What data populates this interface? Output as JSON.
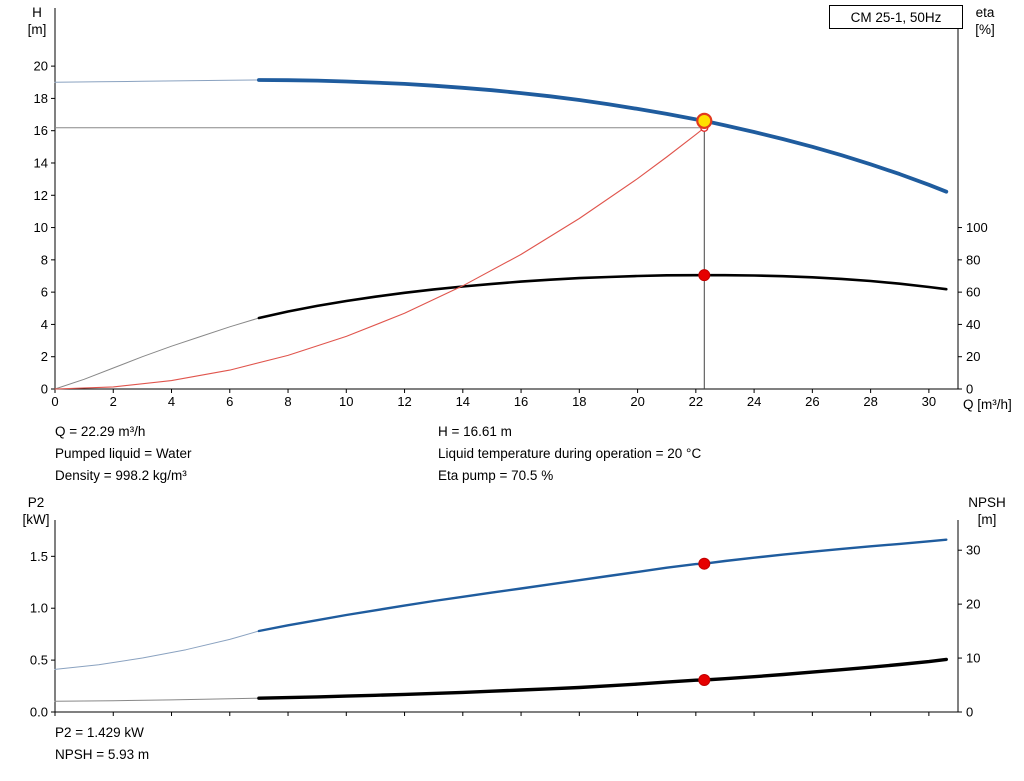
{
  "page": {
    "background": "#ffffff"
  },
  "info_top": {
    "col1": [
      "Q = 22.29 m³/h",
      "Pumped liquid = Water",
      "Density = 998.2 kg/m³"
    ],
    "col2": [
      "H = 16.61 m",
      "Liquid temperature during operation = 20 °C",
      "Eta pump = 70.5 %"
    ]
  },
  "info_bottom": [
    "P2 = 1.429 kW",
    "NPSH = 5.93 m"
  ],
  "chart_data": [
    {
      "type": "line",
      "title": "CM 25-1, 50Hz",
      "labels": {
        "y_left": [
          "H",
          "[m]"
        ],
        "y_right": [
          "eta",
          "[%]"
        ],
        "x": "Q [m³/h]"
      },
      "xlim": [
        0,
        31.0
      ],
      "ylim_left": [
        0,
        23.6
      ],
      "ylim_right": [
        0,
        236
      ],
      "x_ticks": [
        0,
        2,
        4,
        6,
        8,
        10,
        12,
        14,
        16,
        18,
        20,
        22,
        24,
        26,
        28,
        30
      ],
      "x_tick_labels": [
        "0",
        "2",
        "4",
        "6",
        "8",
        "10",
        "12",
        "14",
        "16",
        "18",
        "20",
        "22",
        "24",
        "26",
        "28",
        "30"
      ],
      "y_ticks_left": [
        0,
        2,
        4,
        6,
        8,
        10,
        12,
        14,
        16,
        18,
        20
      ],
      "y_tick_labels_left": [
        "0",
        "2",
        "4",
        "6",
        "8",
        "10",
        "12",
        "14",
        "16",
        "18",
        "20"
      ],
      "y_ticks_right": [
        0,
        20,
        40,
        60,
        80,
        100
      ],
      "y_tick_labels_right": [
        "0",
        "20",
        "40",
        "60",
        "80",
        "100"
      ],
      "duty_point": {
        "q_m3h": 22.29,
        "h_m": 16.61,
        "eta_pct": 70.5
      },
      "series": [
        {
          "name": "head-curve-extension",
          "axis": "left",
          "color": "#8aa2c0",
          "width": 1,
          "points": [
            [
              0,
              19.0
            ],
            [
              1.5,
              19.03
            ],
            [
              3,
              19.06
            ],
            [
              4.5,
              19.09
            ],
            [
              6,
              19.12
            ],
            [
              7,
              19.14
            ]
          ]
        },
        {
          "name": "head-curve",
          "axis": "left",
          "color": "#1f5c9e",
          "width": 3.8,
          "points": [
            [
              7,
              19.14
            ],
            [
              8,
              19.13
            ],
            [
              9,
              19.1
            ],
            [
              10,
              19.05
            ],
            [
              11,
              18.98
            ],
            [
              12,
              18.9
            ],
            [
              13,
              18.79
            ],
            [
              14,
              18.66
            ],
            [
              15,
              18.51
            ],
            [
              16,
              18.33
            ],
            [
              17,
              18.13
            ],
            [
              18,
              17.9
            ],
            [
              19,
              17.64
            ],
            [
              20,
              17.35
            ],
            [
              21,
              17.04
            ],
            [
              22,
              16.7
            ],
            [
              22.29,
              16.61
            ],
            [
              23,
              16.33
            ],
            [
              24,
              15.92
            ],
            [
              25,
              15.48
            ],
            [
              26,
              15.0
            ],
            [
              27,
              14.48
            ],
            [
              28,
              13.92
            ],
            [
              29,
              13.31
            ],
            [
              30,
              12.65
            ],
            [
              30.6,
              12.22
            ]
          ]
        },
        {
          "name": "eta-curve-extension",
          "axis": "right",
          "color": "#888888",
          "width": 1,
          "points": [
            [
              0,
              0
            ],
            [
              1,
              6
            ],
            [
              2,
              13
            ],
            [
              3,
              20
            ],
            [
              4,
              26.5
            ],
            [
              5,
              32.5
            ],
            [
              6,
              38.5
            ],
            [
              7,
              44
            ]
          ]
        },
        {
          "name": "eta-curve",
          "axis": "right",
          "color": "#000000",
          "width": 2.6,
          "points": [
            [
              7,
              44
            ],
            [
              8,
              48
            ],
            [
              9,
              51.5
            ],
            [
              10,
              54.5
            ],
            [
              11,
              57.2
            ],
            [
              12,
              59.6
            ],
            [
              13,
              61.7
            ],
            [
              14,
              63.5
            ],
            [
              15,
              65.1
            ],
            [
              16,
              66.5
            ],
            [
              17,
              67.7
            ],
            [
              18,
              68.7
            ],
            [
              19,
              69.4
            ],
            [
              20,
              70.0
            ],
            [
              21,
              70.4
            ],
            [
              22,
              70.5
            ],
            [
              22.29,
              70.5
            ],
            [
              23,
              70.5
            ],
            [
              24,
              70.3
            ],
            [
              25,
              69.9
            ],
            [
              26,
              69.2
            ],
            [
              27,
              68.2
            ],
            [
              28,
              66.9
            ],
            [
              29,
              65.2
            ],
            [
              30,
              63.2
            ],
            [
              30.6,
              61.8
            ]
          ]
        },
        {
          "name": "system-curve",
          "axis": "left",
          "color": "#e0554d",
          "width": 1.1,
          "points": [
            [
              0,
              0
            ],
            [
              2,
              0.13
            ],
            [
              4,
              0.52
            ],
            [
              6,
              1.17
            ],
            [
              8,
              2.08
            ],
            [
              10,
              3.26
            ],
            [
              12,
              4.69
            ],
            [
              14,
              6.39
            ],
            [
              16,
              8.34
            ],
            [
              18,
              10.56
            ],
            [
              20,
              13.03
            ],
            [
              21,
              14.37
            ],
            [
              22,
              15.76
            ],
            [
              22.29,
              16.18
            ]
          ]
        }
      ],
      "annotations": [
        {
          "kind": "vline",
          "name": "duty-flow-line",
          "axis": "left",
          "x": 22.29,
          "y1": 0,
          "y2": 16.61,
          "color": "#444444",
          "width": 1
        },
        {
          "kind": "hline",
          "name": "duty-head-line",
          "axis": "left",
          "y": 16.18,
          "x1": 0,
          "x2": 22.29,
          "color": "#888888",
          "width": 1
        },
        {
          "kind": "marker",
          "name": "required-duty-marker",
          "axis": "left",
          "x": 22.29,
          "y": 16.18,
          "r": 3.5,
          "fill": "#ffffff",
          "stroke": "#e03030",
          "sw": 1.3
        },
        {
          "kind": "marker",
          "name": "duty-point-marker",
          "axis": "left",
          "x": 22.29,
          "y": 16.61,
          "r": 7,
          "fill": "#ffdf00",
          "stroke": "#e23a1e",
          "sw": 2.2
        },
        {
          "kind": "marker",
          "name": "eta-duty-marker",
          "axis": "right",
          "x": 22.29,
          "y": 70.5,
          "r": 5.5,
          "fill": "#e60000",
          "stroke": "#c00000",
          "sw": 1
        }
      ]
    },
    {
      "type": "line",
      "title": "",
      "labels": {
        "y_left": [
          "P2",
          "[kW]"
        ],
        "y_right": [
          "NPSH",
          "[m]"
        ],
        "x": ""
      },
      "xlim": [
        0,
        31.0
      ],
      "ylim_left": [
        0,
        1.85
      ],
      "ylim_right": [
        0,
        35.6
      ],
      "x_ticks": [
        0,
        2,
        4,
        6,
        8,
        10,
        12,
        14,
        16,
        18,
        20,
        22,
        24,
        26,
        28,
        30
      ],
      "x_tick_labels": [],
      "y_ticks_left": [
        0,
        0.5,
        1.0,
        1.5
      ],
      "y_tick_labels_left": [
        "0.0",
        "0.5",
        "1.0",
        "1.5"
      ],
      "y_ticks_right": [
        0,
        10,
        20,
        30
      ],
      "y_tick_labels_right": [
        "0",
        "10",
        "20",
        "30"
      ],
      "duty_point": {
        "q_m3h": 22.29,
        "p2_kw": 1.429,
        "npsh_m": 5.93
      },
      "series": [
        {
          "name": "p2-curve-extension",
          "axis": "left",
          "color": "#8aa2c0",
          "width": 1,
          "points": [
            [
              0,
              0.41
            ],
            [
              1.5,
              0.455
            ],
            [
              3,
              0.52
            ],
            [
              4.5,
              0.6
            ],
            [
              6,
              0.7
            ],
            [
              7,
              0.78
            ]
          ]
        },
        {
          "name": "p2-curve",
          "axis": "left",
          "color": "#1f5c9e",
          "width": 2.4,
          "points": [
            [
              7,
              0.78
            ],
            [
              8,
              0.835
            ],
            [
              9,
              0.885
            ],
            [
              10,
              0.935
            ],
            [
              11,
              0.98
            ],
            [
              12,
              1.025
            ],
            [
              13,
              1.07
            ],
            [
              14,
              1.11
            ],
            [
              15,
              1.15
            ],
            [
              16,
              1.19
            ],
            [
              17,
              1.23
            ],
            [
              18,
              1.27
            ],
            [
              19,
              1.31
            ],
            [
              20,
              1.35
            ],
            [
              21,
              1.39
            ],
            [
              22,
              1.425
            ],
            [
              22.29,
              1.429
            ],
            [
              23,
              1.455
            ],
            [
              24,
              1.487
            ],
            [
              25,
              1.517
            ],
            [
              26,
              1.545
            ],
            [
              27,
              1.572
            ],
            [
              28,
              1.597
            ],
            [
              29,
              1.62
            ],
            [
              30,
              1.645
            ],
            [
              30.6,
              1.66
            ]
          ]
        },
        {
          "name": "npsh-curve-extension",
          "axis": "right",
          "color": "#888888",
          "width": 1,
          "points": [
            [
              0,
              2.0
            ],
            [
              2,
              2.1
            ],
            [
              4,
              2.25
            ],
            [
              6,
              2.45
            ],
            [
              7,
              2.55
            ]
          ]
        },
        {
          "name": "npsh-curve",
          "axis": "right",
          "color": "#000000",
          "width": 3.4,
          "points": [
            [
              7,
              2.55
            ],
            [
              8,
              2.67
            ],
            [
              9,
              2.8
            ],
            [
              10,
              2.95
            ],
            [
              11,
              3.1
            ],
            [
              12,
              3.27
            ],
            [
              13,
              3.45
            ],
            [
              14,
              3.64
            ],
            [
              15,
              3.85
            ],
            [
              16,
              4.07
            ],
            [
              17,
              4.3
            ],
            [
              18,
              4.55
            ],
            [
              19,
              4.85
            ],
            [
              20,
              5.18
            ],
            [
              21,
              5.54
            ],
            [
              22,
              5.9
            ],
            [
              22.29,
              5.93
            ],
            [
              23,
              6.18
            ],
            [
              24,
              6.55
            ],
            [
              25,
              6.95
            ],
            [
              26,
              7.4
            ],
            [
              27,
              7.85
            ],
            [
              28,
              8.3
            ],
            [
              29,
              8.8
            ],
            [
              30,
              9.35
            ],
            [
              30.6,
              9.75
            ]
          ]
        }
      ],
      "annotations": [
        {
          "kind": "marker",
          "name": "p2-duty-marker",
          "axis": "left",
          "x": 22.29,
          "y": 1.429,
          "r": 5.5,
          "fill": "#e60000",
          "stroke": "#c00000",
          "sw": 1
        },
        {
          "kind": "marker",
          "name": "npsh-duty-marker",
          "axis": "right",
          "x": 22.29,
          "y": 5.93,
          "r": 5.5,
          "fill": "#e60000",
          "stroke": "#c00000",
          "sw": 1
        }
      ]
    }
  ]
}
